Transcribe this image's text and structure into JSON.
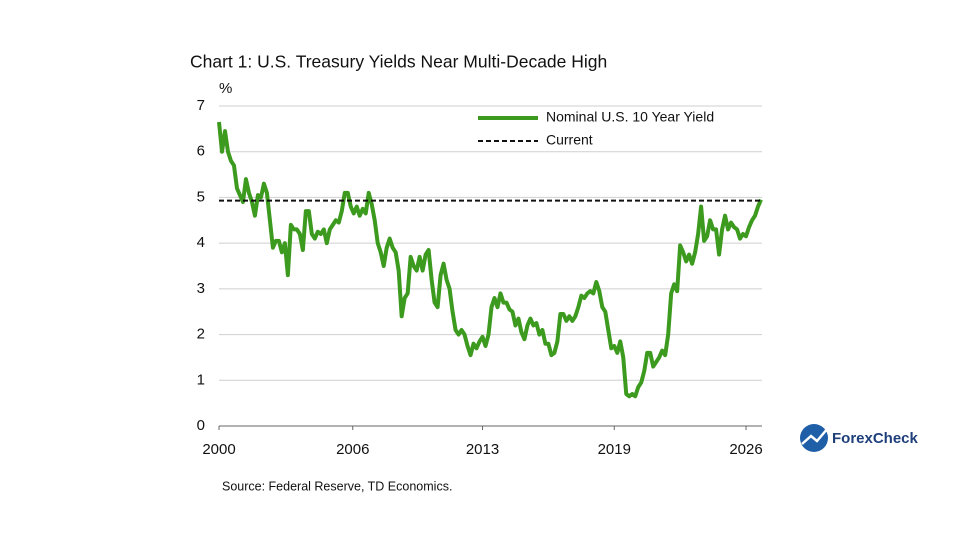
{
  "chart_data": {
    "type": "line",
    "title": "Chart 1: U.S. Treasury Yields Near Multi-Decade High",
    "y_label": "%",
    "source": "Source: Federal Reserve, TD Economics.",
    "logo_text": "ForexCheck",
    "xlim": [
      2000,
      2027.2
    ],
    "xticks": [
      2000,
      {
        "value": 2006.7,
        "label": "2006"
      },
      {
        "value": 2013.2,
        "label": "2013"
      },
      {
        "value": 2019.8,
        "label": "2019"
      },
      {
        "value": 2026.4,
        "label": "2026"
      }
    ],
    "ylim": [
      0,
      7
    ],
    "yticks": [
      0,
      1,
      2,
      3,
      4,
      5,
      6,
      7
    ],
    "grid": true,
    "legend": "top-right",
    "series": [
      {
        "name": "Nominal U.S. 10 Year Yield",
        "color": "#3c9a1e",
        "dash": false,
        "x": [
          2000,
          2000.15,
          2000.3,
          2000.45,
          2000.6,
          2000.75,
          2000.9,
          2001.05,
          2001.2,
          2001.35,
          2001.5,
          2001.65,
          2001.8,
          2001.95,
          2002.1,
          2002.25,
          2002.4,
          2002.55,
          2002.7,
          2002.85,
          2003,
          2003.15,
          2003.3,
          2003.45,
          2003.6,
          2003.75,
          2003.9,
          2004.05,
          2004.2,
          2004.35,
          2004.5,
          2004.65,
          2004.8,
          2004.95,
          2005.1,
          2005.25,
          2005.4,
          2005.55,
          2005.7,
          2005.85,
          2006,
          2006.15,
          2006.3,
          2006.45,
          2006.6,
          2006.75,
          2006.9,
          2007.05,
          2007.2,
          2007.35,
          2007.5,
          2007.65,
          2007.8,
          2007.95,
          2008.1,
          2008.25,
          2008.4,
          2008.55,
          2008.7,
          2008.85,
          2009,
          2009.15,
          2009.3,
          2009.45,
          2009.6,
          2009.75,
          2009.9,
          2010.05,
          2010.2,
          2010.35,
          2010.5,
          2010.65,
          2010.8,
          2010.95,
          2011.1,
          2011.25,
          2011.4,
          2011.55,
          2011.7,
          2011.85,
          2012,
          2012.15,
          2012.3,
          2012.45,
          2012.6,
          2012.75,
          2012.9,
          2013.05,
          2013.2,
          2013.35,
          2013.5,
          2013.65,
          2013.8,
          2013.95,
          2014.1,
          2014.25,
          2014.4,
          2014.55,
          2014.7,
          2014.85,
          2015,
          2015.15,
          2015.3,
          2015.45,
          2015.6,
          2015.75,
          2015.9,
          2016.05,
          2016.2,
          2016.35,
          2016.5,
          2016.65,
          2016.8,
          2016.95,
          2017.1,
          2017.25,
          2017.4,
          2017.55,
          2017.7,
          2017.85,
          2018,
          2018.15,
          2018.3,
          2018.45,
          2018.6,
          2018.75,
          2018.9,
          2019.05,
          2019.2,
          2019.35,
          2019.5,
          2019.65,
          2019.8,
          2019.95,
          2020.1,
          2020.25,
          2020.4,
          2020.55,
          2020.7,
          2020.85,
          2021,
          2021.15,
          2021.3,
          2021.45,
          2021.6,
          2021.75,
          2021.9,
          2022.05,
          2022.2,
          2022.35,
          2022.5,
          2022.65,
          2022.8,
          2022.95,
          2023.1,
          2023.25,
          2023.4,
          2023.55,
          2023.7,
          2023.85,
          2024,
          2024.15,
          2024.3,
          2024.45,
          2024.6,
          2024.75,
          2024.9,
          2025.05,
          2025.2,
          2025.35,
          2025.5,
          2025.65,
          2025.8,
          2025.95,
          2026.1,
          2026.25,
          2026.4,
          2026.55,
          2026.7,
          2026.85,
          2027,
          2027.15
        ],
        "values": [
          6.65,
          6.0,
          6.45,
          6.0,
          5.8,
          5.7,
          5.2,
          5.05,
          4.9,
          5.4,
          5.1,
          4.9,
          4.6,
          5.05,
          5.0,
          5.3,
          5.1,
          4.5,
          3.9,
          4.05,
          4.05,
          3.8,
          4.0,
          3.3,
          4.4,
          4.3,
          4.3,
          4.2,
          3.85,
          4.7,
          4.7,
          4.2,
          4.1,
          4.25,
          4.2,
          4.3,
          4.0,
          4.3,
          4.4,
          4.5,
          4.45,
          4.7,
          5.1,
          5.1,
          4.8,
          4.65,
          4.8,
          4.6,
          4.75,
          4.65,
          5.1,
          4.85,
          4.5,
          4.0,
          3.8,
          3.5,
          3.9,
          4.1,
          3.9,
          3.8,
          3.4,
          2.4,
          2.8,
          2.9,
          3.7,
          3.5,
          3.4,
          3.7,
          3.4,
          3.75,
          3.85,
          3.2,
          2.7,
          2.6,
          3.3,
          3.55,
          3.2,
          3.0,
          2.5,
          2.1,
          2.0,
          2.1,
          2.0,
          1.75,
          1.55,
          1.8,
          1.7,
          1.85,
          1.95,
          1.75,
          2.0,
          2.6,
          2.8,
          2.6,
          2.9,
          2.7,
          2.7,
          2.55,
          2.5,
          2.2,
          2.35,
          2.05,
          1.9,
          2.2,
          2.35,
          2.2,
          2.25,
          2.0,
          2.1,
          1.8,
          1.8,
          1.55,
          1.6,
          1.85,
          2.45,
          2.45,
          2.3,
          2.4,
          2.3,
          2.4,
          2.6,
          2.85,
          2.8,
          2.9,
          2.95,
          2.9,
          3.15,
          2.95,
          2.6,
          2.5,
          2.1,
          1.7,
          1.75,
          1.6,
          1.85,
          1.5,
          0.7,
          0.65,
          0.7,
          0.65,
          0.85,
          0.95,
          1.2,
          1.6,
          1.6,
          1.3,
          1.4,
          1.5,
          1.65,
          1.55,
          2.0,
          2.9,
          3.1,
          2.95,
          3.95,
          3.8,
          3.6,
          3.75,
          3.55,
          3.8,
          4.2,
          4.8,
          4.05,
          4.15,
          4.5,
          4.3,
          4.3,
          3.75,
          4.3,
          4.6,
          4.3,
          4.45,
          4.35,
          4.3,
          4.1,
          4.2,
          4.15,
          4.35,
          4.5,
          4.6,
          4.8,
          4.95
        ]
      },
      {
        "name": "Current",
        "color": "#111111",
        "dash": true,
        "x": [
          2000,
          2027.2
        ],
        "values": [
          4.93,
          4.93
        ]
      }
    ]
  }
}
